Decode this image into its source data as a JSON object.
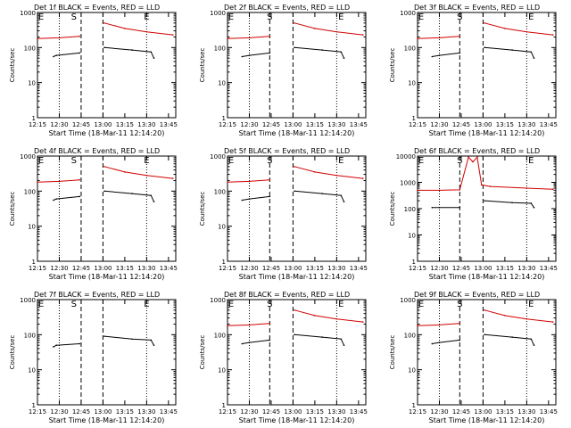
{
  "window": {
    "title": "Detector count rates"
  },
  "colors": {
    "events": "#000000",
    "lld": "#d00000",
    "frame": "#000000",
    "markers": "#000000"
  },
  "chart_data": [
    {
      "type": "line",
      "title": "Det 1f BLACK = Events, RED = LLD",
      "xlabel": "Start Time (18-Mar-11 12:14:20)",
      "ylabel": "Counts/sec",
      "xlim": [
        "12:15",
        "13:50"
      ],
      "ylim": [
        1,
        1000
      ],
      "yscale": "log",
      "grid": false,
      "x_ticks": [
        "12:15",
        "12:30",
        "12:45",
        "13:00",
        "13:15",
        "13:30",
        "13:45"
      ],
      "y_ticks": [
        "1",
        "10",
        "100",
        "1000"
      ],
      "markers": {
        "S": "12:40",
        "E": "13:30",
        "dashed": [
          "12:45",
          "13:00"
        ],
        "dotted": [
          "12:30",
          "13:30"
        ]
      },
      "series": [
        {
          "name": "Events",
          "x": [
            "12:26",
            "12:28",
            "12:44",
            "12:59",
            "13:01",
            "13:20",
            "13:33",
            "13:35"
          ],
          "y": [
            55,
            60,
            70,
            null,
            100,
            85,
            75,
            50
          ]
        },
        {
          "name": "LLD",
          "x": [
            "12:15",
            "12:30",
            "12:44",
            "12:59",
            "13:01",
            "13:15",
            "13:30",
            "13:48"
          ],
          "y": [
            180,
            190,
            210,
            null,
            500,
            350,
            280,
            230
          ]
        }
      ]
    },
    {
      "type": "line",
      "title": "Det 2f BLACK = Events, RED = LLD",
      "xlabel": "Start Time (18-Mar-11 12:14:20)",
      "ylabel": "Counts/sec",
      "xlim": [
        "12:15",
        "13:50"
      ],
      "ylim": [
        1,
        1000
      ],
      "yscale": "log",
      "grid": false,
      "x_ticks": [
        "12:15",
        "12:30",
        "12:45",
        "13:00",
        "13:15",
        "13:30",
        "13:45"
      ],
      "y_ticks": [
        "1",
        "10",
        "100",
        "1000"
      ],
      "markers": {
        "S": "12:44",
        "E": "13:33",
        "dashed": [
          "12:44",
          "13:00"
        ],
        "dotted": [
          "12:30",
          "13:30"
        ]
      },
      "series": [
        {
          "name": "Events",
          "x": [
            "12:25",
            "12:30",
            "12:44",
            "12:59",
            "13:01",
            "13:20",
            "13:33",
            "13:35"
          ],
          "y": [
            55,
            60,
            70,
            null,
            100,
            85,
            75,
            50
          ]
        },
        {
          "name": "LLD",
          "x": [
            "12:15",
            "12:30",
            "12:44",
            "12:59",
            "13:01",
            "13:15",
            "13:30",
            "13:48"
          ],
          "y": [
            180,
            190,
            210,
            null,
            500,
            350,
            280,
            230
          ]
        }
      ]
    },
    {
      "type": "line",
      "title": "Det 3f BLACK = Events, RED = LLD",
      "xlabel": "Start Time (18-Mar-11 12:14:20)",
      "ylabel": "Counts/sec",
      "xlim": [
        "12:15",
        "13:50"
      ],
      "ylim": [
        1,
        1000
      ],
      "yscale": "log",
      "grid": false,
      "x_ticks": [
        "12:15",
        "12:30",
        "12:45",
        "13:00",
        "13:15",
        "13:30",
        "13:45"
      ],
      "y_ticks": [
        "1",
        "10",
        "100",
        "1000"
      ],
      "markers": {
        "S": "12:44",
        "E": "13:33",
        "dashed": [
          "12:44",
          "13:00"
        ],
        "dotted": [
          "12:30",
          "13:30"
        ]
      },
      "series": [
        {
          "name": "Events",
          "x": [
            "12:25",
            "12:30",
            "12:44",
            "12:59",
            "13:01",
            "13:20",
            "13:33",
            "13:35"
          ],
          "y": [
            55,
            60,
            70,
            null,
            100,
            85,
            75,
            50
          ]
        },
        {
          "name": "LLD",
          "x": [
            "12:15",
            "12:30",
            "12:44",
            "12:59",
            "13:01",
            "13:15",
            "13:30",
            "13:48"
          ],
          "y": [
            180,
            190,
            210,
            null,
            500,
            350,
            280,
            230
          ]
        }
      ]
    },
    {
      "type": "line",
      "title": "Det 4f BLACK = Events, RED = LLD",
      "xlabel": "Start Time (18-Mar-11 12:14:20)",
      "ylabel": "Counts/sec",
      "xlim": [
        "12:15",
        "13:50"
      ],
      "ylim": [
        1,
        1000
      ],
      "yscale": "log",
      "grid": false,
      "x_ticks": [
        "12:15",
        "12:30",
        "12:45",
        "13:00",
        "13:15",
        "13:30",
        "13:45"
      ],
      "y_ticks": [
        "1",
        "10",
        "100",
        "1000"
      ],
      "markers": {
        "S": "12:40",
        "E": "13:30",
        "dashed": [
          "12:45",
          "13:00"
        ],
        "dotted": [
          "12:30",
          "13:30"
        ]
      },
      "series": [
        {
          "name": "Events",
          "x": [
            "12:26",
            "12:28",
            "12:44",
            "12:59",
            "13:01",
            "13:20",
            "13:33",
            "13:35"
          ],
          "y": [
            55,
            60,
            70,
            null,
            100,
            85,
            75,
            50
          ]
        },
        {
          "name": "LLD",
          "x": [
            "12:15",
            "12:30",
            "12:44",
            "12:59",
            "13:01",
            "13:15",
            "13:30",
            "13:48"
          ],
          "y": [
            180,
            190,
            210,
            null,
            500,
            350,
            280,
            230
          ]
        }
      ]
    },
    {
      "type": "line",
      "title": "Det 5f BLACK = Events, RED = LLD",
      "xlabel": "Start Time (18-Mar-11 12:14:20)",
      "ylabel": "Counts/sec",
      "xlim": [
        "12:15",
        "13:50"
      ],
      "ylim": [
        1,
        1000
      ],
      "yscale": "log",
      "grid": false,
      "x_ticks": [
        "12:15",
        "12:30",
        "12:45",
        "13:00",
        "13:15",
        "13:30",
        "13:45"
      ],
      "y_ticks": [
        "1",
        "10",
        "100",
        "1000"
      ],
      "markers": {
        "S": "12:44",
        "E": "13:33",
        "dashed": [
          "12:44",
          "13:00"
        ],
        "dotted": [
          "12:30",
          "13:30"
        ]
      },
      "series": [
        {
          "name": "Events",
          "x": [
            "12:25",
            "12:30",
            "12:44",
            "12:59",
            "13:01",
            "13:20",
            "13:33",
            "13:35"
          ],
          "y": [
            55,
            60,
            70,
            null,
            100,
            85,
            75,
            50
          ]
        },
        {
          "name": "LLD",
          "x": [
            "12:15",
            "12:30",
            "12:44",
            "12:59",
            "13:01",
            "13:15",
            "13:30",
            "13:48"
          ],
          "y": [
            180,
            190,
            210,
            null,
            500,
            350,
            280,
            230
          ]
        }
      ]
    },
    {
      "type": "line",
      "title": "Det 6f BLACK = Events, RED = LLD",
      "xlabel": "Start Time (18-Mar-11 12:14:20)",
      "ylabel": "Counts/sec",
      "xlim": [
        "12:15",
        "13:50"
      ],
      "ylim": [
        1,
        10000
      ],
      "yscale": "log",
      "grid": false,
      "x_ticks": [
        "12:15",
        "12:30",
        "12:45",
        "13:00",
        "13:15",
        "13:30",
        "13:45"
      ],
      "y_ticks": [
        "1",
        "10",
        "100",
        "1000",
        "10000"
      ],
      "markers": {
        "S": "12:44",
        "E": "13:33",
        "dashed": [
          "12:44",
          "13:00"
        ],
        "dotted": [
          "12:30",
          "13:30"
        ]
      },
      "series": [
        {
          "name": "Events",
          "x": [
            "12:25",
            "12:30",
            "12:44",
            "12:59",
            "13:01",
            "13:20",
            "13:33",
            "13:35"
          ],
          "y": [
            110,
            110,
            110,
            null,
            200,
            170,
            160,
            110
          ]
        },
        {
          "name": "LLD",
          "x": [
            "12:15",
            "12:30",
            "12:44",
            "12:50",
            "12:53",
            "12:56",
            "12:59",
            "13:05",
            "13:30",
            "13:48"
          ],
          "y": [
            500,
            500,
            520,
            9000,
            6000,
            9000,
            800,
            700,
            600,
            550
          ]
        }
      ]
    },
    {
      "type": "line",
      "title": "Det 7f BLACK = Events, RED = LLD",
      "xlabel": "Start Time (18-Mar-11 12:14:20)",
      "ylabel": "Counts/sec",
      "xlim": [
        "12:15",
        "13:50"
      ],
      "ylim": [
        1,
        1000
      ],
      "yscale": "log",
      "grid": false,
      "x_ticks": [
        "12:15",
        "12:30",
        "12:45",
        "13:00",
        "13:15",
        "13:30",
        "13:45"
      ],
      "y_ticks": [
        "1",
        "10",
        "100",
        "1000"
      ],
      "markers": {
        "S": "12:40",
        "E": "13:30",
        "dashed": [
          "12:45",
          "13:00"
        ],
        "dotted": [
          "12:30",
          "13:30"
        ]
      },
      "series": [
        {
          "name": "Events",
          "x": [
            "12:26",
            "12:28",
            "12:44",
            "12:59",
            "13:01",
            "13:20",
            "13:33",
            "13:35"
          ],
          "y": [
            45,
            50,
            55,
            null,
            90,
            75,
            70,
            50
          ]
        }
      ]
    },
    {
      "type": "line",
      "title": "Det 8f BLACK = Events, RED = LLD",
      "xlabel": "Start Time (18-Mar-11 12:14:20)",
      "ylabel": "Counts/sec",
      "xlim": [
        "12:15",
        "13:50"
      ],
      "ylim": [
        1,
        1000
      ],
      "yscale": "log",
      "grid": false,
      "x_ticks": [
        "12:15",
        "12:30",
        "12:45",
        "13:00",
        "13:15",
        "13:30",
        "13:45"
      ],
      "y_ticks": [
        "1",
        "10",
        "100",
        "1000"
      ],
      "markers": {
        "S": "12:44",
        "E": "13:33",
        "dashed": [
          "12:44",
          "13:00"
        ],
        "dotted": [
          "12:30",
          "13:30"
        ]
      },
      "series": [
        {
          "name": "Events",
          "x": [
            "12:25",
            "12:30",
            "12:44",
            "12:59",
            "13:01",
            "13:20",
            "13:33",
            "13:35"
          ],
          "y": [
            55,
            60,
            70,
            null,
            100,
            85,
            75,
            50
          ]
        },
        {
          "name": "LLD",
          "x": [
            "12:15",
            "12:30",
            "12:44",
            "12:59",
            "13:01",
            "13:15",
            "13:30",
            "13:48"
          ],
          "y": [
            180,
            190,
            210,
            null,
            500,
            350,
            280,
            230
          ]
        }
      ]
    },
    {
      "type": "line",
      "title": "Det 9f BLACK = Events, RED = LLD",
      "xlabel": "Start Time (18-Mar-11 12:14:20)",
      "ylabel": "Counts/sec",
      "xlim": [
        "12:15",
        "13:50"
      ],
      "ylim": [
        1,
        1000
      ],
      "yscale": "log",
      "grid": false,
      "x_ticks": [
        "12:15",
        "12:30",
        "12:45",
        "13:00",
        "13:15",
        "13:30",
        "13:45"
      ],
      "y_ticks": [
        "1",
        "10",
        "100",
        "1000"
      ],
      "markers": {
        "S": "12:44",
        "E": "13:33",
        "dashed": [
          "12:44",
          "13:00"
        ],
        "dotted": [
          "12:30",
          "13:30"
        ]
      },
      "series": [
        {
          "name": "Events",
          "x": [
            "12:25",
            "12:30",
            "12:44",
            "12:59",
            "13:01",
            "13:20",
            "13:33",
            "13:35"
          ],
          "y": [
            55,
            60,
            70,
            null,
            100,
            85,
            75,
            50
          ]
        },
        {
          "name": "LLD",
          "x": [
            "12:15",
            "12:30",
            "12:44",
            "12:59",
            "13:01",
            "13:15",
            "13:30",
            "13:48"
          ],
          "y": [
            180,
            190,
            210,
            null,
            500,
            350,
            280,
            230
          ]
        }
      ]
    }
  ]
}
